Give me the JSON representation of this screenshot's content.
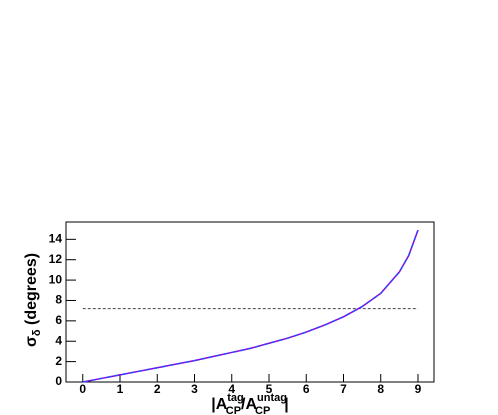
{
  "chart_data": {
    "type": "line",
    "x": [
      0,
      0.5,
      1,
      1.5,
      2,
      2.5,
      3,
      3.5,
      4,
      4.5,
      5,
      5.5,
      6,
      6.5,
      7,
      7.5,
      8,
      8.5,
      8.75,
      9
    ],
    "series": [
      {
        "color": "#9900cc",
        "dashed": false,
        "values": [
          0,
          0.35,
          0.7,
          1.05,
          1.4,
          1.75,
          2.1,
          2.5,
          2.9,
          3.3,
          3.8,
          4.3,
          4.9,
          5.6,
          6.4,
          7.4,
          8.7,
          10.8,
          12.4,
          14.9
        ]
      },
      {
        "color": "#3344ff",
        "dashed": true,
        "values": [
          0,
          0.35,
          0.7,
          1.05,
          1.4,
          1.75,
          2.1,
          2.5,
          2.9,
          3.3,
          3.8,
          4.3,
          4.9,
          5.6,
          6.4,
          7.4,
          8.7,
          10.8,
          12.4,
          14.9
        ]
      }
    ],
    "reference_line": {
      "y": 7.2,
      "x": [
        0,
        9
      ],
      "color": "#444444"
    },
    "xlim": [
      -0.45,
      9.43
    ],
    "ylim": [
      0,
      15.7
    ],
    "xticks": [
      0,
      1,
      2,
      3,
      4,
      5,
      6,
      7,
      8,
      9
    ],
    "yticks": [
      0,
      2,
      4,
      6,
      8,
      10,
      12,
      14
    ],
    "xlabel": {
      "parts": [
        "|A",
        "tag",
        "CP",
        "/A",
        "untag",
        "CP",
        "|"
      ]
    },
    "ylabel": {
      "parts": [
        "σ",
        "δ",
        " (degrees)"
      ]
    }
  }
}
